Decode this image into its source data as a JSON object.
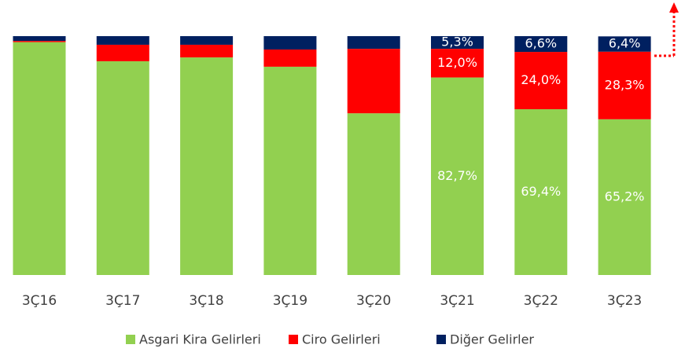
{
  "chart_data": {
    "type": "stacked_bar",
    "categories": [
      "3Ç16",
      "3Ç17",
      "3Ç18",
      "3Ç19",
      "3Ç20",
      "3Ç21",
      "3Ç22",
      "3Ç23"
    ],
    "series": [
      {
        "name": "Asgari Kira Gelirleri",
        "color": "#92d050",
        "values": [
          97.5,
          89.5,
          91.1,
          87.2,
          67.7,
          82.7,
          69.4,
          65.2
        ],
        "value_labels": [
          null,
          null,
          null,
          null,
          null,
          "82,7%",
          "69,4%",
          "65,2%"
        ]
      },
      {
        "name": "Ciro Gelirleri",
        "color": "#ff0000",
        "values": [
          0.5,
          6.9,
          5.3,
          7.2,
          27.0,
          12.0,
          24.0,
          28.3
        ],
        "value_labels": [
          null,
          null,
          null,
          null,
          null,
          "12,0%",
          "24,0%",
          "28,3%"
        ]
      },
      {
        "name": "Diğer Gelirler",
        "color": "#002060",
        "values": [
          2.0,
          3.6,
          3.6,
          5.6,
          5.3,
          5.3,
          6.6,
          6.4
        ],
        "value_labels": [
          null,
          null,
          null,
          null,
          null,
          "5,3%",
          "6,6%",
          "6,4%"
        ]
      }
    ],
    "ylim": [
      0,
      100
    ]
  }
}
